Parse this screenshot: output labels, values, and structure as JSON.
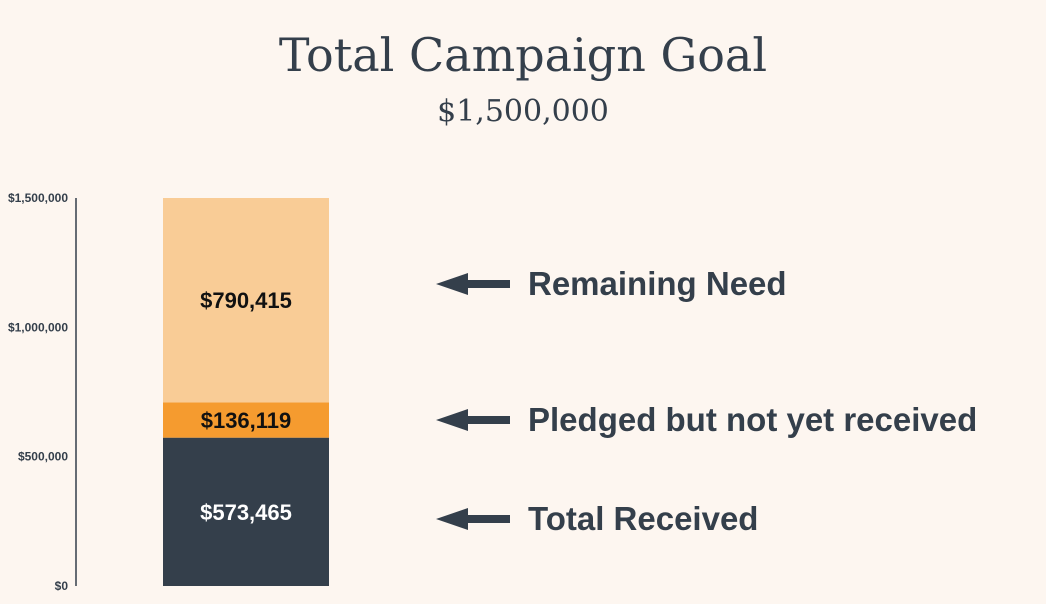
{
  "chart_data": {
    "type": "bar",
    "stacked": true,
    "title": "Total Campaign Goal",
    "subtitle": "$1,500,000",
    "categories": [
      ""
    ],
    "ylim": [
      0,
      1500000
    ],
    "yticks": [
      {
        "value": 0,
        "label": "$0"
      },
      {
        "value": 500000,
        "label": "$500,000"
      },
      {
        "value": 1000000,
        "label": "$1,000,000"
      },
      {
        "value": 1500000,
        "label": "$1,500,000"
      }
    ],
    "grid": false,
    "series": [
      {
        "name": "Total Received",
        "values": [
          573465
        ],
        "data_label": "$573,465",
        "color": "#343f4b",
        "label_color": "#ffffff"
      },
      {
        "name": "Pledged but not yet received",
        "values": [
          136119
        ],
        "data_label": "$136,119",
        "color": "#f59b2f",
        "label_color": "#111111"
      },
      {
        "name": "Remaining Need",
        "values": [
          790415
        ],
        "data_label": "$790,415",
        "color": "#f9cc96",
        "label_color": "#111111"
      }
    ],
    "annotations_order": [
      2,
      1,
      0
    ]
  },
  "colors": {
    "background": "#fdf6f0",
    "text": "#343f4b",
    "axis": "#343f4b"
  },
  "icons": {
    "annotation_arrow": "arrow-left-icon"
  }
}
